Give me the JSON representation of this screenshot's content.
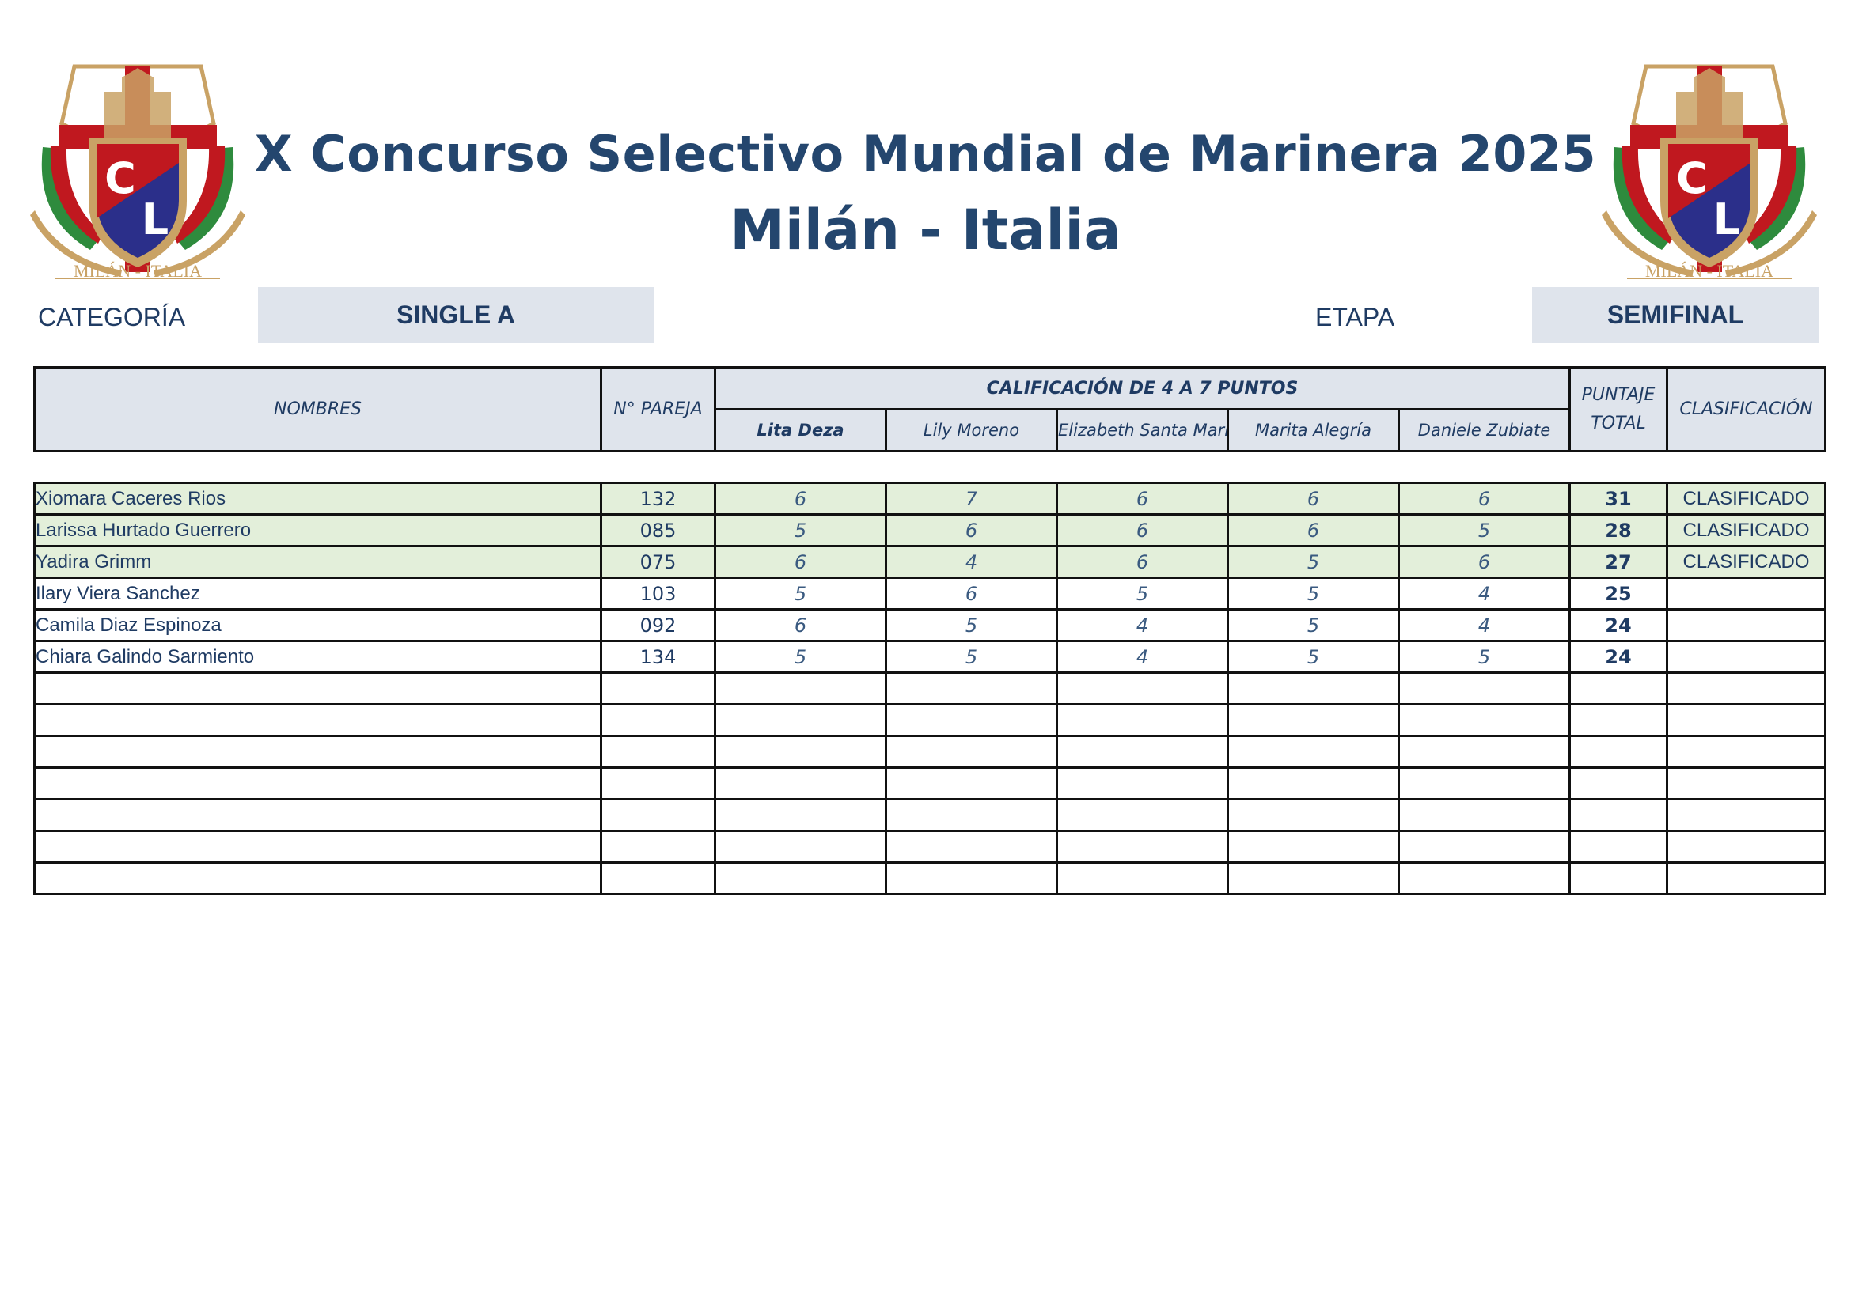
{
  "header": {
    "title_line1": "X Concurso Selectivo Mundial de Marinera 2025",
    "title_line2": "Milán - Italia",
    "logo_text": "MILÁN - ITALIA"
  },
  "meta": {
    "category_label": "CATEGORÍA",
    "category_value": "SINGLE A",
    "stage_label": "ETAPA",
    "stage_value": "SEMIFINAL"
  },
  "table": {
    "col_names": "NOMBRES",
    "col_pair": "N° PAREJA",
    "col_group": "CALIFICACIÓN DE 4 A 7 PUNTOS",
    "col_total_1": "PUNTAJE",
    "col_total_2": "TOTAL",
    "col_class": "CLASIFICACIÓN",
    "judges": [
      "Lita Deza",
      "Lily Moreno",
      "Elizabeth Santa María",
      "Marita Alegría",
      "Daniele Zubiate"
    ],
    "rows": [
      {
        "name": "Xiomara Caceres Rios",
        "pair": "132",
        "scores": [
          "6",
          "7",
          "6",
          "6",
          "6"
        ],
        "total": "31",
        "status": "CLASIFICADO"
      },
      {
        "name": "Larissa Hurtado Guerrero",
        "pair": "085",
        "scores": [
          "5",
          "6",
          "6",
          "6",
          "5"
        ],
        "total": "28",
        "status": "CLASIFICADO"
      },
      {
        "name": "Yadira Grimm",
        "pair": "075",
        "scores": [
          "6",
          "4",
          "6",
          "5",
          "6"
        ],
        "total": "27",
        "status": "CLASIFICADO"
      },
      {
        "name": "Ilary Viera Sanchez",
        "pair": "103",
        "scores": [
          "5",
          "6",
          "5",
          "5",
          "4"
        ],
        "total": "25",
        "status": ""
      },
      {
        "name": "Camila Diaz Espinoza",
        "pair": "092",
        "scores": [
          "6",
          "5",
          "4",
          "5",
          "4"
        ],
        "total": "24",
        "status": ""
      },
      {
        "name": "Chiara Galindo Sarmiento",
        "pair": "134",
        "scores": [
          "5",
          "5",
          "4",
          "5",
          "5"
        ],
        "total": "24",
        "status": ""
      }
    ],
    "empty_rows": 7
  },
  "colors": {
    "title": "#24466e",
    "header_fill": "#dfe4ec",
    "qualified_fill": "#e3efda",
    "crest_red": "#c0181f",
    "crest_blue": "#2b2f8a",
    "crest_gold": "#c9a265",
    "crest_green": "#2e8b3d"
  }
}
